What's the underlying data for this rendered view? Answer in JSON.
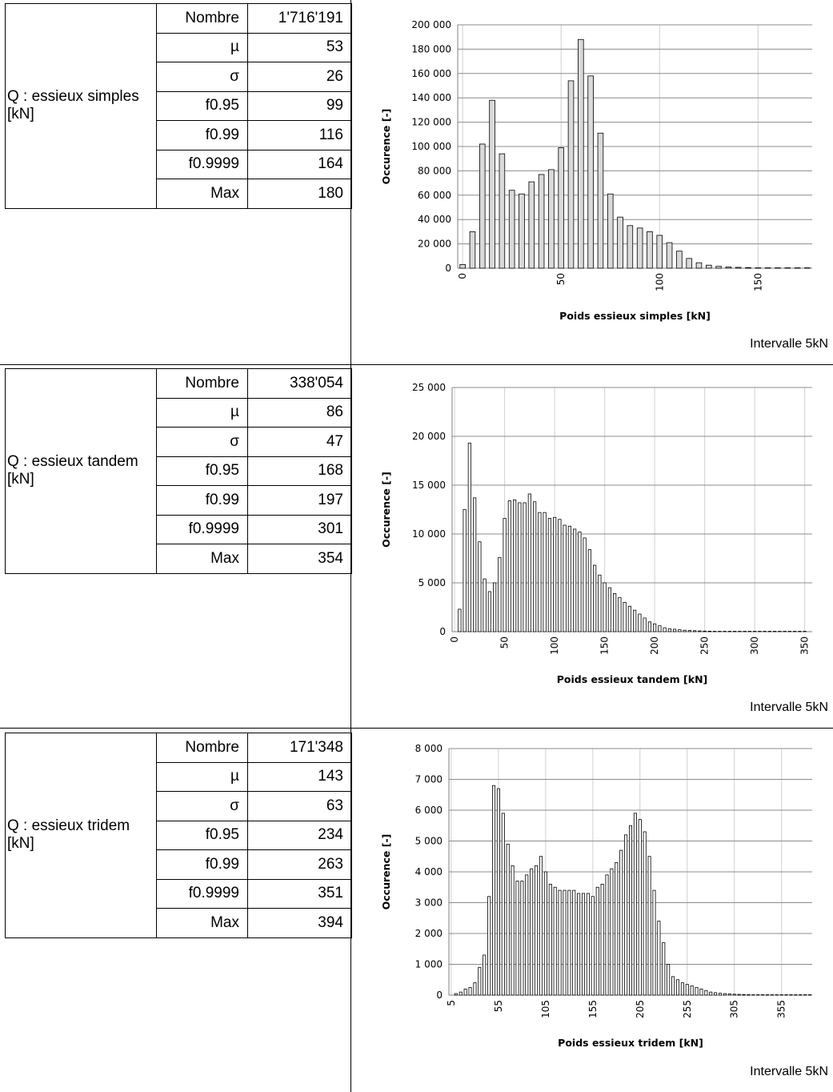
{
  "sections": [
    {
      "label": "Q : essieux simples [kN]",
      "stats": [
        {
          "name": "Nombre",
          "value": "1'716'191"
        },
        {
          "name": "µ",
          "value": "53"
        },
        {
          "name": "σ",
          "value": "26"
        },
        {
          "name": "f0.95",
          "value": "99"
        },
        {
          "name": "f0.99",
          "value": "116"
        },
        {
          "name": "f0.9999",
          "value": "164"
        },
        {
          "name": "Max",
          "value": "180"
        }
      ],
      "note": "Intervalle 5kN"
    },
    {
      "label": "Q : essieux tandem [kN]",
      "stats": [
        {
          "name": "Nombre",
          "value": "338'054"
        },
        {
          "name": "µ",
          "value": "86"
        },
        {
          "name": "σ",
          "value": "47"
        },
        {
          "name": "f0.95",
          "value": "168"
        },
        {
          "name": "f0.99",
          "value": "197"
        },
        {
          "name": "f0.9999",
          "value": "301"
        },
        {
          "name": "Max",
          "value": "354"
        }
      ],
      "note": "Intervalle 5kN"
    },
    {
      "label": "Q : essieux tridem [kN]",
      "stats": [
        {
          "name": "Nombre",
          "value": "171'348"
        },
        {
          "name": "µ",
          "value": "143"
        },
        {
          "name": "σ",
          "value": "63"
        },
        {
          "name": "f0.95",
          "value": "234"
        },
        {
          "name": "f0.99",
          "value": "263"
        },
        {
          "name": "f0.9999",
          "value": "351"
        },
        {
          "name": "Max",
          "value": "394"
        }
      ],
      "note": "Intervalle 5kN"
    }
  ],
  "chart_data": [
    {
      "type": "bar",
      "xlabel": "Poids essieux simples [kN]",
      "ylabel": "Occurence [-]",
      "ylim": [
        0,
        200000
      ],
      "yticks": [
        0,
        20000,
        40000,
        60000,
        80000,
        100000,
        120000,
        140000,
        160000,
        180000,
        200000
      ],
      "ytick_labels": [
        "0",
        "20 000",
        "40 000",
        "60 000",
        "80 000",
        "100 000",
        "120 000",
        "140 000",
        "160 000",
        "180 000",
        "200 000"
      ],
      "xlim": [
        -2.5,
        177.5
      ],
      "xticks": [
        0,
        50,
        100,
        150
      ],
      "bar_width": 5,
      "x": [
        0,
        5,
        10,
        15,
        20,
        25,
        30,
        35,
        40,
        45,
        50,
        55,
        60,
        65,
        70,
        75,
        80,
        85,
        90,
        95,
        100,
        105,
        110,
        115,
        120,
        125,
        130,
        135,
        140,
        145,
        150,
        155,
        160,
        165,
        170,
        175
      ],
      "values": [
        3000,
        30000,
        102000,
        138000,
        94000,
        64000,
        61000,
        71000,
        77000,
        81000,
        99000,
        154000,
        188000,
        158000,
        111000,
        61000,
        42000,
        35000,
        33000,
        30000,
        27000,
        21000,
        14000,
        8000,
        4500,
        2500,
        1500,
        1000,
        700,
        500,
        300,
        200,
        150,
        100,
        80,
        50
      ],
      "grid": true
    },
    {
      "type": "bar",
      "xlabel": "Poids essieux tandem [kN]",
      "ylabel": "Occurence [-]",
      "ylim": [
        0,
        25000
      ],
      "yticks": [
        0,
        5000,
        10000,
        15000,
        20000,
        25000
      ],
      "ytick_labels": [
        "0",
        "5 000",
        "10 000",
        "15 000",
        "20 000",
        "25 000"
      ],
      "xlim": [
        -2.5,
        357.5
      ],
      "xticks": [
        0,
        50,
        100,
        150,
        200,
        250,
        300,
        350
      ],
      "bar_width": 5,
      "x": [
        5,
        10,
        15,
        20,
        25,
        30,
        35,
        40,
        45,
        50,
        55,
        60,
        65,
        70,
        75,
        80,
        85,
        90,
        95,
        100,
        105,
        110,
        115,
        120,
        125,
        130,
        135,
        140,
        145,
        150,
        155,
        160,
        165,
        170,
        175,
        180,
        185,
        190,
        195,
        200,
        205,
        210,
        215,
        220,
        225,
        230,
        235,
        240,
        245,
        250,
        255,
        260,
        265,
        270,
        275,
        280,
        285,
        290,
        295,
        300,
        305,
        310,
        315,
        320,
        325,
        330,
        335,
        340,
        345,
        350
      ],
      "values": [
        2300,
        12500,
        19300,
        13700,
        9200,
        5400,
        4100,
        5000,
        7600,
        11600,
        13400,
        13500,
        13200,
        13200,
        14100,
        13300,
        12200,
        12200,
        11600,
        11700,
        11500,
        10900,
        10800,
        10500,
        10200,
        9600,
        8400,
        6800,
        5800,
        5000,
        4500,
        3900,
        3500,
        3000,
        2600,
        2200,
        1800,
        1400,
        1000,
        800,
        600,
        400,
        300,
        250,
        200,
        150,
        120,
        100,
        80,
        60,
        50,
        40,
        30,
        30,
        20,
        20,
        20,
        10,
        10,
        10,
        10,
        10,
        5,
        5,
        5,
        5,
        5,
        5,
        5,
        5
      ],
      "grid": true
    },
    {
      "type": "bar",
      "xlabel": "Poids essieux tridem [kN]",
      "ylabel": "Occurence [-]",
      "ylim": [
        0,
        8000
      ],
      "yticks": [
        0,
        1000,
        2000,
        3000,
        4000,
        5000,
        6000,
        7000,
        8000
      ],
      "ytick_labels": [
        "0",
        "1 000",
        "2 000",
        "3 000",
        "4 000",
        "5 000",
        "6 000",
        "7 000",
        "8 000"
      ],
      "xlim": [
        2.5,
        387.5
      ],
      "xticks": [
        5,
        55,
        105,
        155,
        205,
        255,
        305,
        355
      ],
      "bar_width": 5,
      "x": [
        10,
        15,
        20,
        25,
        30,
        35,
        40,
        45,
        50,
        55,
        60,
        65,
        70,
        75,
        80,
        85,
        90,
        95,
        100,
        105,
        110,
        115,
        120,
        125,
        130,
        135,
        140,
        145,
        150,
        155,
        160,
        165,
        170,
        175,
        180,
        185,
        190,
        195,
        200,
        205,
        210,
        215,
        220,
        225,
        230,
        235,
        240,
        245,
        250,
        255,
        260,
        265,
        270,
        275,
        280,
        285,
        290,
        295,
        300,
        305,
        310,
        315,
        320,
        325,
        330,
        335,
        340,
        345,
        350,
        355,
        360,
        365,
        370,
        375,
        380,
        385
      ],
      "values": [
        50,
        100,
        200,
        250,
        400,
        900,
        1300,
        3200,
        6800,
        6700,
        5900,
        4900,
        4200,
        3700,
        3700,
        3900,
        4100,
        4200,
        4500,
        4000,
        3600,
        3500,
        3400,
        3400,
        3400,
        3400,
        3300,
        3300,
        3300,
        3200,
        3500,
        3600,
        3900,
        4100,
        4300,
        4700,
        5200,
        5500,
        5900,
        5700,
        5300,
        4500,
        3400,
        2400,
        1700,
        1000,
        600,
        500,
        400,
        350,
        300,
        250,
        200,
        150,
        100,
        80,
        60,
        50,
        40,
        30,
        25,
        20,
        15,
        12,
        10,
        8,
        6,
        5,
        4,
        3,
        3,
        2,
        2,
        2,
        2,
        1
      ],
      "grid": true
    }
  ]
}
